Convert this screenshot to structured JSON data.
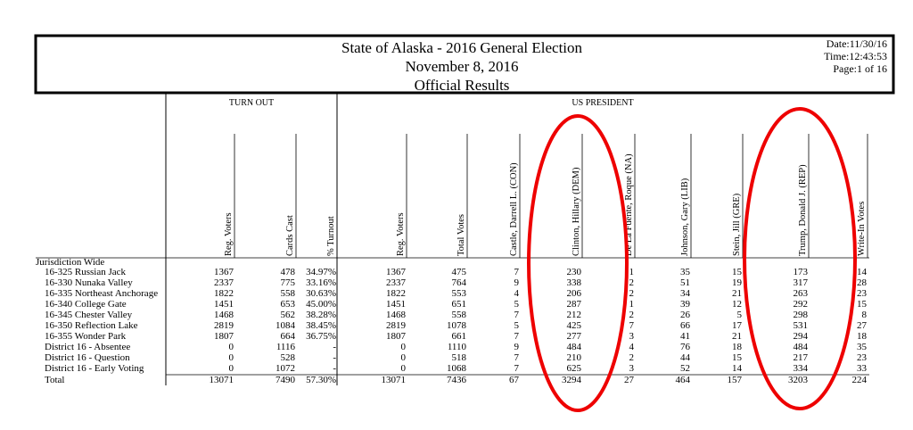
{
  "header": {
    "title": [
      "State of Alaska - 2016 General Election",
      "November 8, 2016",
      "Official Results"
    ],
    "date": "Date:11/30/16",
    "time": "Time:12:43:53",
    "page": "Page:1 of 16"
  },
  "sections": [
    "TURN OUT",
    "US PRESIDENT"
  ],
  "columns": [
    "Reg. Voters",
    "Cards Cast",
    "% Turnout",
    "Reg. Voters",
    "Total Votes",
    "Castle, Darrell L. (CON)",
    "Clinton, Hillary (DEM)",
    "De La Fuente, Roque (NA)",
    "Johnson, Gary (LIB)",
    "Stein, Jill (GRE)",
    "Trump, Donald J. (REP)",
    "Write-In Votes"
  ],
  "group": "Jurisdiction Wide",
  "rows": [
    [
      "16-325 Russian Jack",
      "1367",
      "478",
      "34.97%",
      "1367",
      "475",
      "7",
      "230",
      "1",
      "35",
      "15",
      "173",
      "14"
    ],
    [
      "16-330 Nunaka Valley",
      "2337",
      "775",
      "33.16%",
      "2337",
      "764",
      "9",
      "338",
      "2",
      "51",
      "19",
      "317",
      "28"
    ],
    [
      "16-335 Northeast Anchorage",
      "1822",
      "558",
      "30.63%",
      "1822",
      "553",
      "4",
      "206",
      "2",
      "34",
      "21",
      "263",
      "23"
    ],
    [
      "16-340 College Gate",
      "1451",
      "653",
      "45.00%",
      "1451",
      "651",
      "5",
      "287",
      "1",
      "39",
      "12",
      "292",
      "15"
    ],
    [
      "16-345 Chester Valley",
      "1468",
      "562",
      "38.28%",
      "1468",
      "558",
      "7",
      "212",
      "2",
      "26",
      "5",
      "298",
      "8"
    ],
    [
      "16-350 Reflection Lake",
      "2819",
      "1084",
      "38.45%",
      "2819",
      "1078",
      "5",
      "425",
      "7",
      "66",
      "17",
      "531",
      "27"
    ],
    [
      "16-355 Wonder Park",
      "1807",
      "664",
      "36.75%",
      "1807",
      "661",
      "7",
      "277",
      "3",
      "41",
      "21",
      "294",
      "18"
    ],
    [
      "District 16 - Absentee",
      "0",
      "1116",
      "-",
      "0",
      "1110",
      "9",
      "484",
      "4",
      "76",
      "18",
      "484",
      "35"
    ],
    [
      "District 16 - Question",
      "0",
      "528",
      "-",
      "0",
      "518",
      "7",
      "210",
      "2",
      "44",
      "15",
      "217",
      "23"
    ],
    [
      "District 16 - Early Voting",
      "0",
      "1072",
      "-",
      "0",
      "1068",
      "7",
      "625",
      "3",
      "52",
      "14",
      "334",
      "33"
    ]
  ],
  "total": [
    "Total",
    "13071",
    "7490",
    "57.30%",
    "13071",
    "7436",
    "67",
    "3294",
    "27",
    "464",
    "157",
    "3203",
    "224"
  ]
}
